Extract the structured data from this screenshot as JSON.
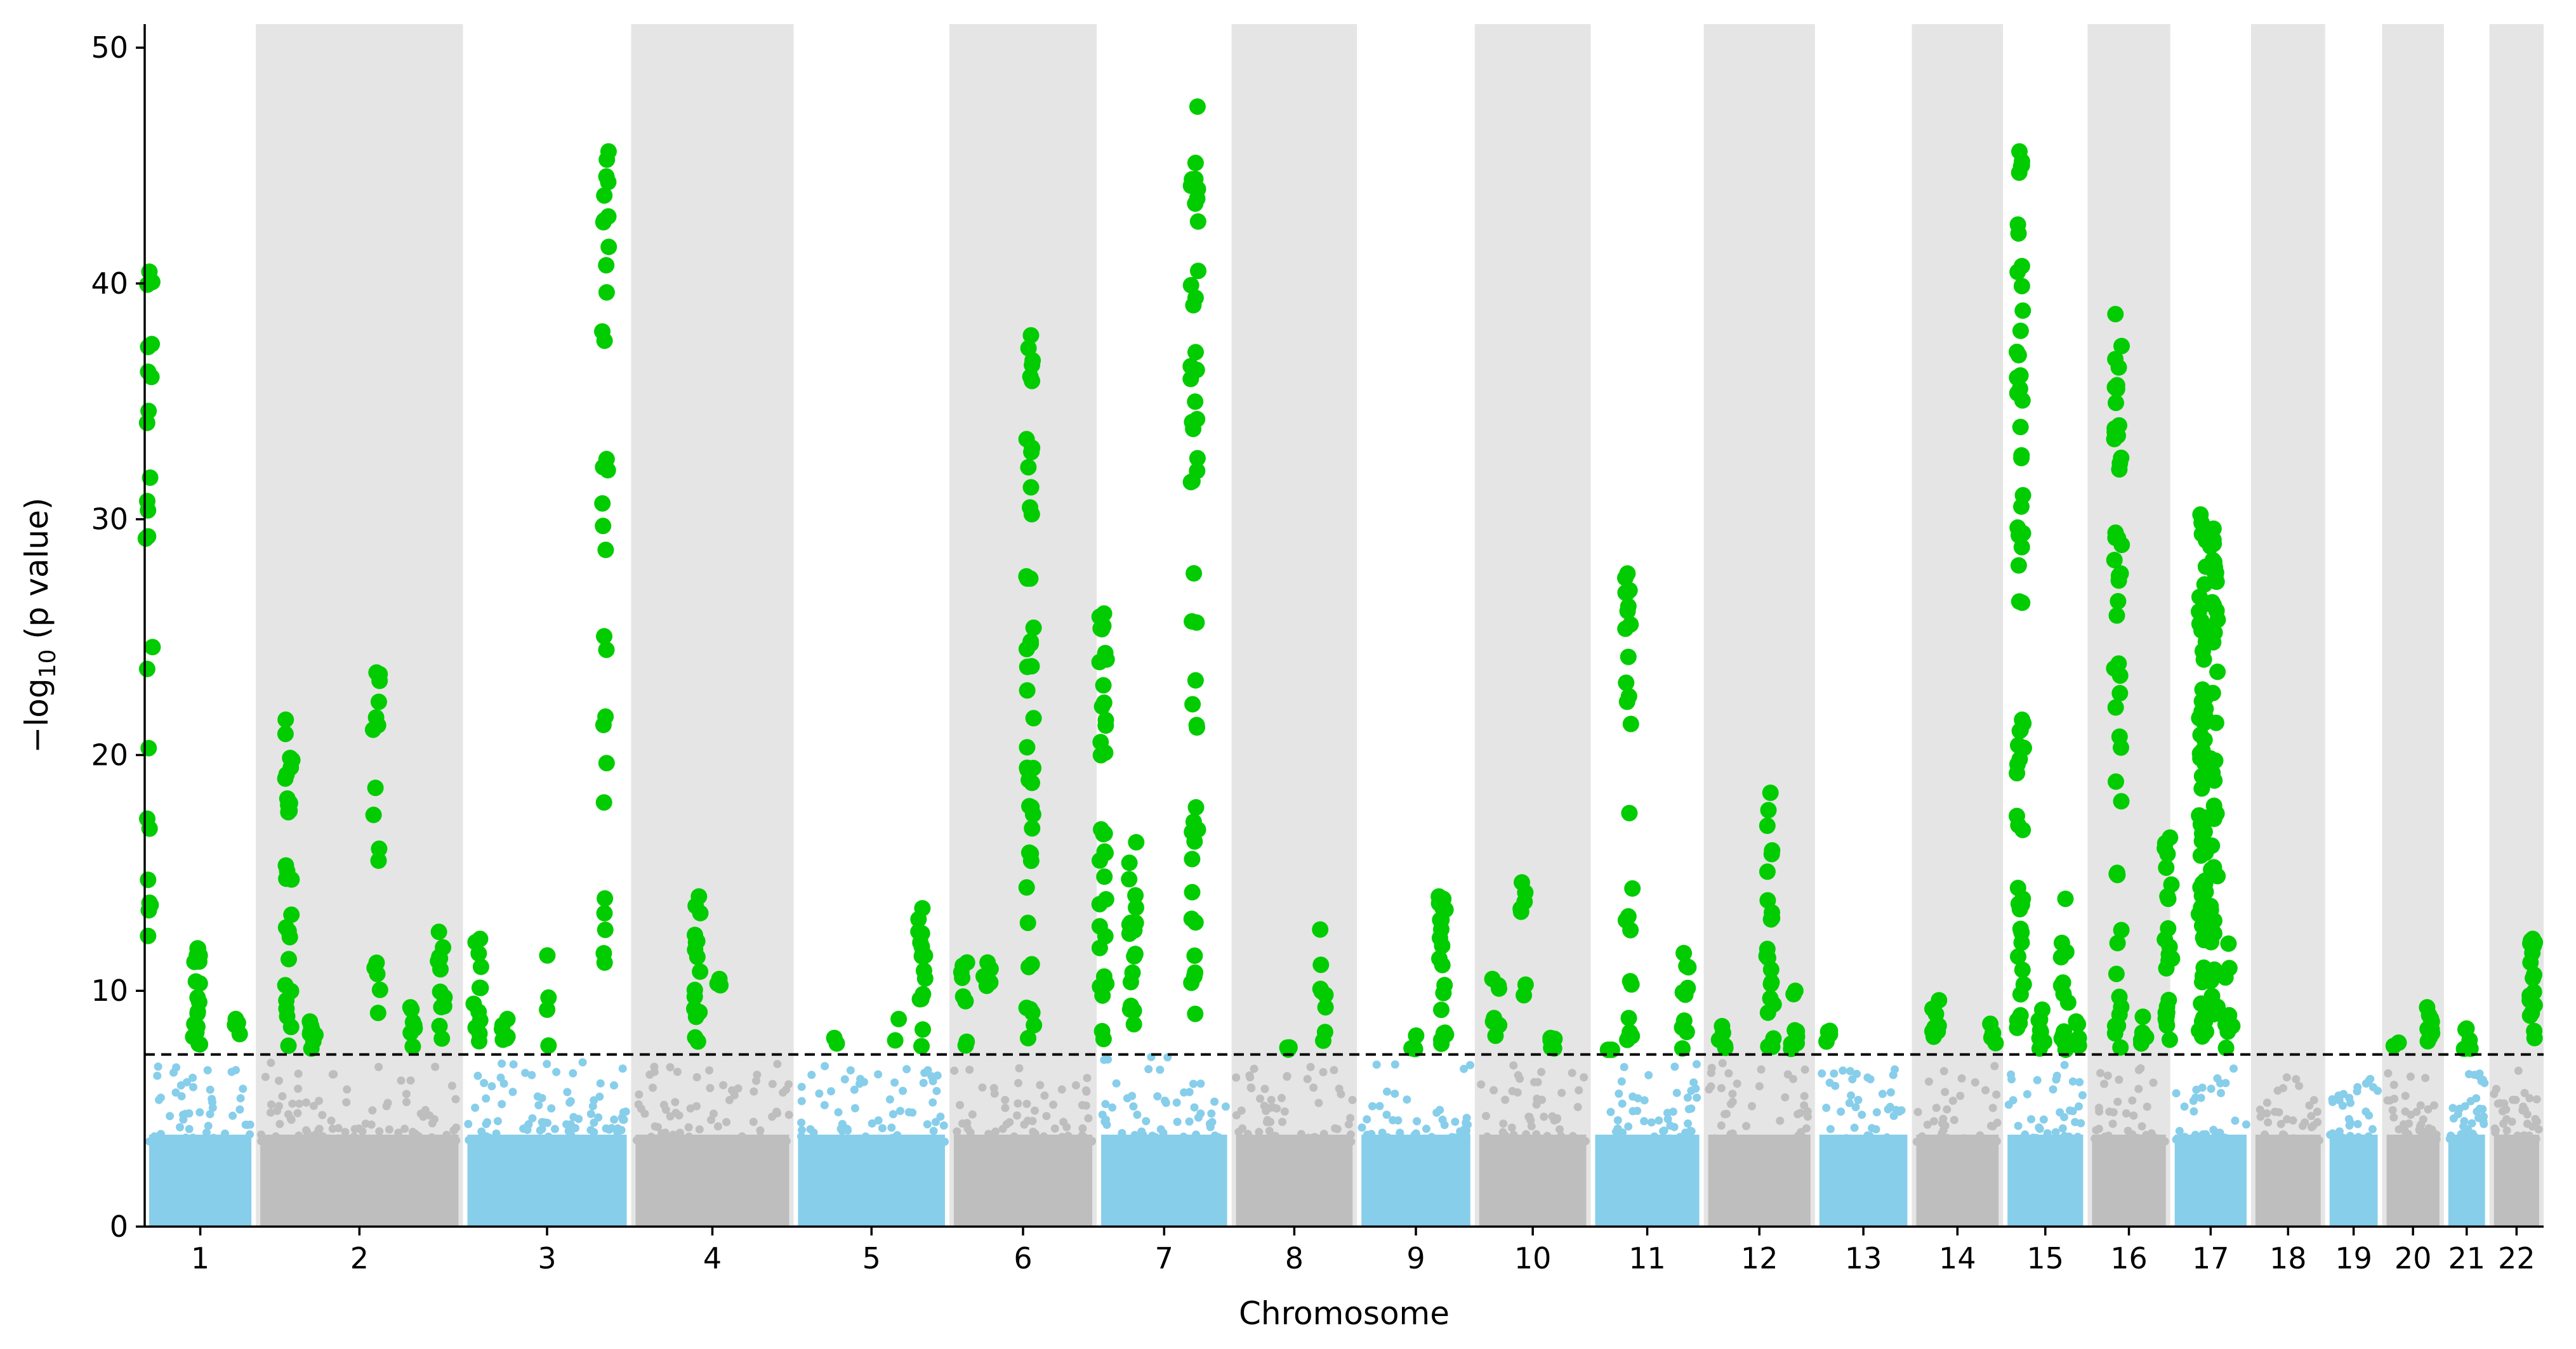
{
  "chart_data": {
    "type": "scatter",
    "subtype": "manhattan",
    "title": "",
    "xlabel": "Chromosome",
    "ylabel": "−log10 (p value)",
    "ylim": [
      0,
      51
    ],
    "yticks": [
      0,
      10,
      20,
      30,
      40,
      50
    ],
    "significance_threshold": 7.3,
    "colors": {
      "odd_chromosome": "#87ceeb",
      "even_chromosome": "#bebebe",
      "significant": "#00cc00",
      "band": "#e5e5e5",
      "threshold_line": "#000000"
    },
    "background_bands": "alternating chromosomes (even)",
    "grid": false,
    "legend": "none",
    "chromosomes": [
      {
        "label": "1",
        "start": 0.0,
        "end": 11.7,
        "max_bg": 6.9,
        "peaks": [
          {
            "pos": 0.5,
            "top": 40.5,
            "n": 24
          },
          {
            "pos": 5.5,
            "top": 11.8,
            "n": 18
          },
          {
            "pos": 9.8,
            "top": 8.8,
            "n": 4
          }
        ]
      },
      {
        "label": "2",
        "start": 11.7,
        "end": 33.5,
        "max_bg": 7.1,
        "peaks": [
          {
            "pos": 3.5,
            "top": 21.5,
            "n": 28
          },
          {
            "pos": 6.0,
            "top": 8.7,
            "n": 8
          },
          {
            "pos": 12.7,
            "top": 23.5,
            "n": 16
          },
          {
            "pos": 16.5,
            "top": 9.3,
            "n": 8
          },
          {
            "pos": 19.5,
            "top": 12.5,
            "n": 12
          }
        ]
      },
      {
        "label": "3",
        "start": 33.5,
        "end": 51.2,
        "max_bg": 7.0,
        "peaks": [
          {
            "pos": 1.5,
            "top": 12.2,
            "n": 12
          },
          {
            "pos": 4.5,
            "top": 8.8,
            "n": 6
          },
          {
            "pos": 9.0,
            "top": 11.5,
            "n": 4
          },
          {
            "pos": 15.0,
            "top": 45.6,
            "n": 30
          }
        ]
      },
      {
        "label": "4",
        "start": 51.2,
        "end": 68.3,
        "max_bg": 6.9,
        "peaks": [
          {
            "pos": 7.0,
            "top": 14.0,
            "n": 16
          },
          {
            "pos": 9.0,
            "top": 10.5,
            "n": 3
          }
        ]
      },
      {
        "label": "5",
        "start": 68.3,
        "end": 84.7,
        "max_bg": 6.9,
        "peaks": [
          {
            "pos": 4.5,
            "top": 8.0,
            "n": 2
          },
          {
            "pos": 11.0,
            "top": 8.8,
            "n": 2
          },
          {
            "pos": 13.5,
            "top": 13.5,
            "n": 16
          }
        ]
      },
      {
        "label": "6",
        "start": 84.7,
        "end": 100.2,
        "max_bg": 6.8,
        "peaks": [
          {
            "pos": 1.5,
            "top": 11.2,
            "n": 8
          },
          {
            "pos": 4.0,
            "top": 11.2,
            "n": 5
          },
          {
            "pos": 8.5,
            "top": 37.8,
            "n": 46
          }
        ]
      },
      {
        "label": "7",
        "start": 100.2,
        "end": 114.4,
        "max_bg": 7.2,
        "peaks": [
          {
            "pos": 0.7,
            "top": 26.0,
            "n": 34
          },
          {
            "pos": 3.8,
            "top": 16.3,
            "n": 18
          },
          {
            "pos": 10.3,
            "top": 47.5,
            "n": 46
          }
        ]
      },
      {
        "label": "8",
        "start": 114.4,
        "end": 127.6,
        "max_bg": 6.8,
        "peaks": [
          {
            "pos": 6.0,
            "top": 7.6,
            "n": 3
          },
          {
            "pos": 9.5,
            "top": 12.6,
            "n": 8
          }
        ]
      },
      {
        "label": "9",
        "start": 127.6,
        "end": 140.0,
        "max_bg": 7.0,
        "peaks": [
          {
            "pos": 6.0,
            "top": 8.1,
            "n": 4
          },
          {
            "pos": 9.0,
            "top": 14.0,
            "n": 20
          }
        ]
      },
      {
        "label": "10",
        "start": 140.0,
        "end": 152.2,
        "max_bg": 6.9,
        "peaks": [
          {
            "pos": 2.2,
            "top": 10.5,
            "n": 8
          },
          {
            "pos": 5.0,
            "top": 14.6,
            "n": 7
          },
          {
            "pos": 8.0,
            "top": 8.0,
            "n": 6
          }
        ]
      },
      {
        "label": "11",
        "start": 152.2,
        "end": 164.1,
        "max_bg": 7.0,
        "peaks": [
          {
            "pos": 2.0,
            "top": 7.5,
            "n": 3
          },
          {
            "pos": 4.0,
            "top": 27.7,
            "n": 26
          },
          {
            "pos": 10.0,
            "top": 11.6,
            "n": 10
          }
        ]
      },
      {
        "label": "12",
        "start": 164.1,
        "end": 175.8,
        "max_bg": 7.0,
        "peaks": [
          {
            "pos": 2.0,
            "top": 8.5,
            "n": 5
          },
          {
            "pos": 7.0,
            "top": 18.4,
            "n": 22
          },
          {
            "pos": 9.5,
            "top": 10.0,
            "n": 8
          }
        ]
      },
      {
        "label": "13",
        "start": 175.8,
        "end": 186.0,
        "max_bg": 6.7,
        "peaks": [
          {
            "pos": 1.5,
            "top": 8.3,
            "n": 4
          }
        ]
      },
      {
        "label": "14",
        "start": 186.0,
        "end": 195.6,
        "max_bg": 6.9,
        "peaks": [
          {
            "pos": 2.5,
            "top": 9.6,
            "n": 8
          },
          {
            "pos": 8.5,
            "top": 8.6,
            "n": 7
          }
        ]
      },
      {
        "label": "15",
        "start": 195.6,
        "end": 204.5,
        "max_bg": 7.0,
        "peaks": [
          {
            "pos": 1.8,
            "top": 45.6,
            "n": 60
          },
          {
            "pos": 4.0,
            "top": 9.2,
            "n": 8
          },
          {
            "pos": 6.5,
            "top": 13.9,
            "n": 14
          },
          {
            "pos": 8.0,
            "top": 8.7,
            "n": 5
          }
        ]
      },
      {
        "label": "16",
        "start": 204.5,
        "end": 213.2,
        "max_bg": 7.1,
        "peaks": [
          {
            "pos": 3.2,
            "top": 38.7,
            "n": 48
          },
          {
            "pos": 6.0,
            "top": 8.9,
            "n": 6
          },
          {
            "pos": 8.5,
            "top": 16.5,
            "n": 24
          }
        ]
      },
      {
        "label": "17",
        "start": 213.2,
        "end": 221.7,
        "max_bg": 7.0,
        "peaks": [
          {
            "pos": 3.4,
            "top": 30.2,
            "n": 70
          },
          {
            "pos": 4.6,
            "top": 29.6,
            "n": 50
          },
          {
            "pos": 6.2,
            "top": 12.0,
            "n": 10
          }
        ]
      },
      {
        "label": "18",
        "start": 221.7,
        "end": 229.5,
        "max_bg": 6.4,
        "peaks": []
      },
      {
        "label": "19",
        "start": 229.5,
        "end": 235.5,
        "max_bg": 6.4,
        "peaks": []
      },
      {
        "label": "20",
        "start": 235.5,
        "end": 242.0,
        "max_bg": 6.8,
        "peaks": [
          {
            "pos": 1.5,
            "top": 7.8,
            "n": 2
          },
          {
            "pos": 5.0,
            "top": 9.3,
            "n": 10
          }
        ]
      },
      {
        "label": "21",
        "start": 242.0,
        "end": 246.8,
        "max_bg": 6.5,
        "peaks": [
          {
            "pos": 2.5,
            "top": 8.4,
            "n": 6
          }
        ]
      },
      {
        "label": "22",
        "start": 246.8,
        "end": 252.5,
        "max_bg": 6.7,
        "peaks": [
          {
            "pos": 4.5,
            "top": 12.2,
            "n": 18
          }
        ]
      }
    ]
  }
}
